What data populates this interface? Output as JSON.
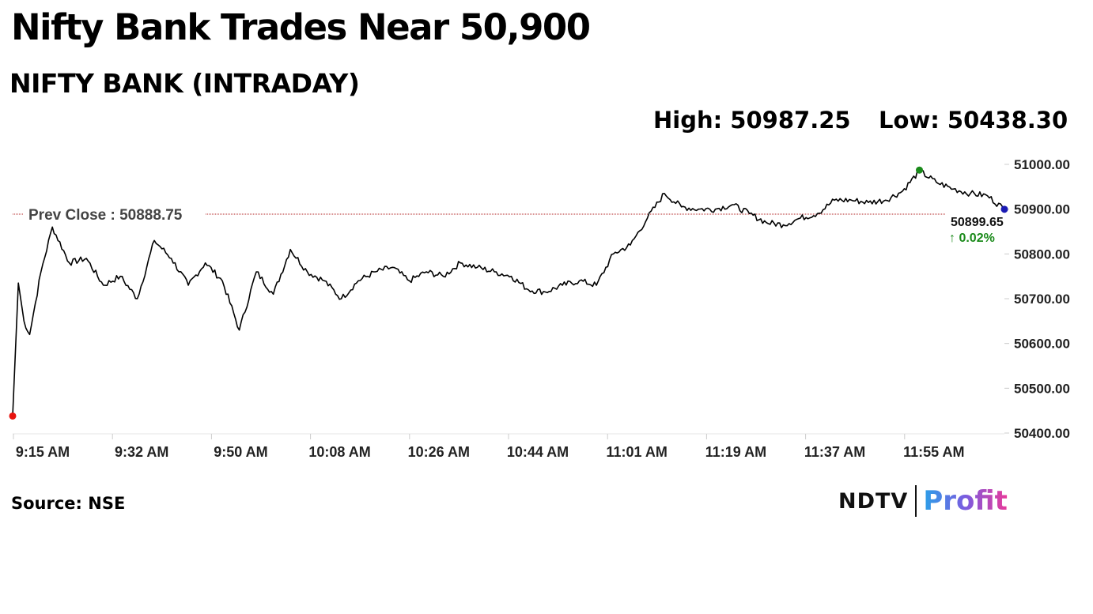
{
  "headline": "Nifty Bank Trades Near 50,900",
  "subtitle": "NIFTY BANK (INTRADAY)",
  "stats": {
    "high_text": "High: 50987.25",
    "low_text": "Low: 50438.30"
  },
  "source": "Source: NSE",
  "logo": {
    "part1": "NDTV",
    "part2": "Profit"
  },
  "colors": {
    "line": "#000000",
    "prev_close_line": "#b22222",
    "start_dot": "#e8140f",
    "high_dot": "#1a8a1a",
    "last_dot": "#1a1ab4",
    "change_up": "#1a8a1a",
    "axis_text": "#222222"
  },
  "chart_data": {
    "type": "line",
    "title": "NIFTY BANK (INTRADAY)",
    "xlabel": "",
    "ylabel": "",
    "ylim": [
      50400,
      51000
    ],
    "yticks": [
      "51000.00",
      "50900.00",
      "50800.00",
      "50700.00",
      "50600.00",
      "50500.00",
      "50400.00"
    ],
    "ytick_values": [
      51000,
      50900,
      50800,
      50700,
      50600,
      50500,
      50400
    ],
    "xticks": [
      "9:15 AM",
      "9:32 AM",
      "9:50 AM",
      "10:08 AM",
      "10:26 AM",
      "10:44 AM",
      "11:01 AM",
      "11:19 AM",
      "11:37 AM",
      "11:55 AM"
    ],
    "x_time_range": [
      "9:15 AM",
      "12:10 PM"
    ],
    "prev_close": {
      "label": "Prev Close : 50888.75",
      "value": 50888.75
    },
    "high": 50987.25,
    "low": 50438.3,
    "last": {
      "value_text": "50899.65",
      "change_text": "↑ 0.02%",
      "value": 50899.65
    },
    "grid": false,
    "series": [
      {
        "x_minutes_from_open": [
          0,
          1,
          2,
          3,
          4,
          5,
          7,
          10,
          13,
          16,
          19,
          22,
          25,
          28,
          31,
          34,
          37,
          40,
          43,
          46,
          49,
          52,
          55,
          58,
          61,
          64,
          67,
          70,
          73,
          76,
          79,
          82,
          85,
          88,
          91,
          94,
          97,
          100,
          103,
          106,
          109,
          112,
          115,
          118,
          121,
          124,
          127,
          130,
          133,
          136,
          139,
          142,
          145,
          148,
          151,
          154,
          157,
          160,
          163,
          166,
          169,
          172,
          175
        ],
        "y": [
          50438,
          50735,
          50650,
          50620,
          50690,
          50760,
          50860,
          50780,
          50790,
          50730,
          50750,
          50700,
          50830,
          50790,
          50730,
          50780,
          50740,
          50630,
          50760,
          50710,
          50810,
          50760,
          50740,
          50700,
          50740,
          50760,
          50770,
          50740,
          50760,
          50750,
          50780,
          50770,
          50760,
          50750,
          50720,
          50715,
          50730,
          50740,
          50730,
          50800,
          50820,
          50880,
          50935,
          50905,
          50900,
          50900,
          50910,
          50890,
          50870,
          50865,
          50880,
          50890,
          50920,
          50920,
          50915,
          50920,
          50940,
          50985,
          50960,
          50945,
          50935,
          50930,
          50899.65
        ]
      }
    ]
  }
}
